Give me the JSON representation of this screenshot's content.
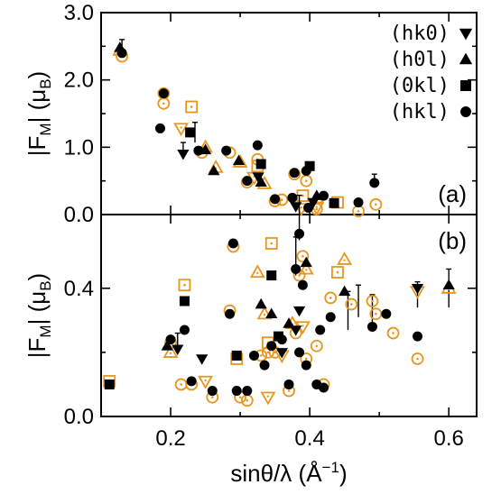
{
  "chart_data": {
    "type": "scatter",
    "xlabel": "sinθ/λ (Å",
    "xlabel_sup": "−1",
    "xlabel_close": ")",
    "x_ticks": [
      "0.2",
      "0.4",
      "0.6"
    ],
    "xlim": [
      0.1,
      0.64
    ],
    "panels": [
      {
        "label": "(a)",
        "ylabel": "|F",
        "ylabel_sub": "M",
        "ylabel_mid": "| (μ",
        "ylabel_sub2": "B",
        "ylabel_close": ")",
        "ylim": [
          0,
          3
        ],
        "y_ticks": [
          "0.0",
          "1.0",
          "2.0",
          "3.0"
        ],
        "legend": [
          {
            "label": "(hk0)",
            "marker": "triangle-down"
          },
          {
            "label": "(h0l)",
            "marker": "triangle-up"
          },
          {
            "label": "(0kl)",
            "marker": "square"
          },
          {
            "label": "(hkl)",
            "marker": "circle"
          }
        ],
        "series": [
          {
            "name": "(hk0)",
            "marker": "triangle-down",
            "measured": [
              [
                0.218,
                0.9
              ],
              [
                0.326,
                0.56
              ],
              [
                0.38,
                0.12
              ],
              [
                0.405,
                0.18
              ]
            ],
            "calculated": [
              [
                0.215,
                1.28
              ],
              [
                0.32,
                0.55
              ],
              [
                0.388,
                0.09
              ],
              [
                0.41,
                0.1
              ]
            ]
          },
          {
            "name": "(h0l)",
            "marker": "triangle-up",
            "measured": [
              [
                0.127,
                2.48
              ],
              [
                0.25,
                0.96
              ],
              [
                0.262,
                0.65
              ],
              [
                0.298,
                0.8
              ],
              [
                0.33,
                0.48
              ],
              [
                0.41,
                0.28
              ]
            ],
            "calculated": [
              [
                0.127,
                2.44
              ],
              [
                0.25,
                1.0
              ],
              [
                0.265,
                0.7
              ],
              [
                0.3,
                0.78
              ],
              [
                0.335,
                0.46
              ],
              [
                0.41,
                0.25
              ]
            ]
          },
          {
            "name": "(0kl)",
            "marker": "square",
            "measured": [
              [
                0.228,
                1.22
              ],
              [
                0.33,
                0.75
              ],
              [
                0.4,
                0.72
              ],
              [
                0.435,
                0.17
              ]
            ],
            "calculated": [
              [
                0.23,
                1.6
              ],
              [
                0.325,
                0.72
              ],
              [
                0.39,
                0.28
              ],
              [
                0.44,
                0.18
              ]
            ]
          },
          {
            "name": "(hkl)",
            "marker": "circle",
            "measured": [
              [
                0.13,
                2.4
              ],
              [
                0.185,
                1.28
              ],
              [
                0.19,
                1.8
              ],
              [
                0.24,
                0.95
              ],
              [
                0.28,
                0.95
              ],
              [
                0.31,
                0.5
              ],
              [
                0.325,
                1.03
              ],
              [
                0.35,
                0.23
              ],
              [
                0.375,
                0.25
              ],
              [
                0.378,
                0.62
              ],
              [
                0.395,
                0.65
              ],
              [
                0.398,
                0.1
              ],
              [
                0.42,
                0.28
              ],
              [
                0.47,
                0.18
              ],
              [
                0.493,
                0.47
              ]
            ],
            "calculated": [
              [
                0.13,
                2.35
              ],
              [
                0.19,
                1.65
              ],
              [
                0.19,
                1.8
              ],
              [
                0.245,
                0.92
              ],
              [
                0.285,
                0.92
              ],
              [
                0.31,
                0.48
              ],
              [
                0.325,
                0.82
              ],
              [
                0.35,
                0.2
              ],
              [
                0.36,
                0.22
              ],
              [
                0.378,
                0.6
              ],
              [
                0.395,
                0.5
              ],
              [
                0.41,
                0.08
              ],
              [
                0.47,
                0.05
              ],
              [
                0.495,
                0.15
              ]
            ]
          }
        ],
        "error_bars": [
          [
            0.13,
            2.5,
            0.1
          ],
          [
            0.218,
            0.95,
            0.12
          ],
          [
            0.235,
            1.22,
            0.15
          ],
          [
            0.493,
            0.5,
            0.1
          ]
        ]
      },
      {
        "label": "(b)",
        "ylabel": "|F",
        "ylabel_sub": "M",
        "ylabel_mid": "| (μ",
        "ylabel_sub2": "B",
        "ylabel_close": ")",
        "ylim": [
          0,
          0.63
        ],
        "y_ticks": [
          "0.0",
          "0.4"
        ],
        "y_tick_values": [
          0,
          0.4
        ],
        "series": [
          {
            "name": "(hk0)",
            "marker": "triangle-down",
            "measured": [
              [
                0.21,
                0.21
              ],
              [
                0.245,
                0.18
              ],
              [
                0.36,
                0.2
              ],
              [
                0.38,
                0.27
              ],
              [
                0.385,
                0.33
              ],
              [
                0.555,
                0.4
              ]
            ],
            "calculated": [
              [
                0.25,
                0.11
              ],
              [
                0.34,
                0.06
              ],
              [
                0.36,
                0.19
              ],
              [
                0.39,
                0.28
              ],
              [
                0.555,
                0.39
              ]
            ]
          },
          {
            "name": "(h0l)",
            "marker": "triangle-up",
            "measured": [
              [
                0.195,
                0.22
              ],
              [
                0.33,
                0.35
              ],
              [
                0.345,
                0.32
              ],
              [
                0.37,
                0.29
              ],
              [
                0.395,
                0.48
              ],
              [
                0.45,
                0.39
              ],
              [
                0.6,
                0.41
              ]
            ],
            "calculated": [
              [
                0.2,
                0.2
              ],
              [
                0.325,
                0.45
              ],
              [
                0.335,
                0.32
              ],
              [
                0.375,
                0.29
              ],
              [
                0.395,
                0.46
              ],
              [
                0.45,
                0.49
              ],
              [
                0.6,
                0.4
              ]
            ]
          },
          {
            "name": "(0kl)",
            "marker": "square",
            "measured": [
              [
                0.112,
                0.1
              ],
              [
                0.22,
                0.36
              ],
              [
                0.295,
                0.19
              ],
              [
                0.345,
                0.44
              ],
              [
                0.355,
                0.25
              ]
            ],
            "calculated": [
              [
                0.112,
                0.11
              ],
              [
                0.22,
                0.41
              ],
              [
                0.295,
                0.18
              ],
              [
                0.345,
                0.54
              ],
              [
                0.44,
                0.45
              ],
              [
                0.34,
                0.23
              ]
            ]
          },
          {
            "name": "(hkl)",
            "marker": "circle",
            "measured": [
              [
                0.2,
                0.24
              ],
              [
                0.22,
                0.27
              ],
              [
                0.23,
                0.11
              ],
              [
                0.26,
                0.08
              ],
              [
                0.285,
                0.32
              ],
              [
                0.29,
                0.54
              ],
              [
                0.295,
                0.08
              ],
              [
                0.31,
                0.08
              ],
              [
                0.32,
                0.19
              ],
              [
                0.335,
                0.16
              ],
              [
                0.345,
                0.22
              ],
              [
                0.36,
                0.24
              ],
              [
                0.37,
                0.1
              ],
              [
                0.38,
                0.46
              ],
              [
                0.385,
                0.2
              ],
              [
                0.385,
                0.57
              ],
              [
                0.39,
                0.41
              ],
              [
                0.395,
                0.16
              ],
              [
                0.41,
                0.1
              ],
              [
                0.415,
                0.27
              ],
              [
                0.42,
                0.09
              ],
              [
                0.43,
                0.31
              ],
              [
                0.49,
                0.28
              ],
              [
                0.51,
                0.32
              ],
              [
                0.555,
                0.25
              ]
            ],
            "calculated": [
              [
                0.2,
                0.23
              ],
              [
                0.215,
                0.1
              ],
              [
                0.23,
                0.1
              ],
              [
                0.26,
                0.06
              ],
              [
                0.285,
                0.33
              ],
              [
                0.29,
                0.53
              ],
              [
                0.3,
                0.06
              ],
              [
                0.31,
                0.05
              ],
              [
                0.33,
                0.19
              ],
              [
                0.34,
                0.2
              ],
              [
                0.35,
                0.2
              ],
              [
                0.37,
                0.08
              ],
              [
                0.38,
                0.26
              ],
              [
                0.385,
                0.44
              ],
              [
                0.39,
                0.5
              ],
              [
                0.395,
                0.18
              ],
              [
                0.41,
                0.22
              ],
              [
                0.42,
                0.1
              ],
              [
                0.43,
                0.37
              ],
              [
                0.46,
                0.35
              ],
              [
                0.49,
                0.36
              ],
              [
                0.495,
                0.32
              ],
              [
                0.52,
                0.26
              ],
              [
                0.555,
                0.18
              ]
            ]
          }
        ],
        "error_bars": [
          [
            0.21,
            0.23,
            0.03
          ],
          [
            0.38,
            0.5,
            0.06
          ],
          [
            0.385,
            0.62,
            0.07
          ],
          [
            0.455,
            0.33,
            0.06
          ],
          [
            0.47,
            0.36,
            0.05
          ],
          [
            0.49,
            0.33,
            0.05
          ],
          [
            0.555,
            0.38,
            0.04
          ],
          [
            0.6,
            0.4,
            0.06
          ]
        ]
      }
    ],
    "colors": {
      "measured": "#000000",
      "calculated": "#e8961e"
    }
  }
}
